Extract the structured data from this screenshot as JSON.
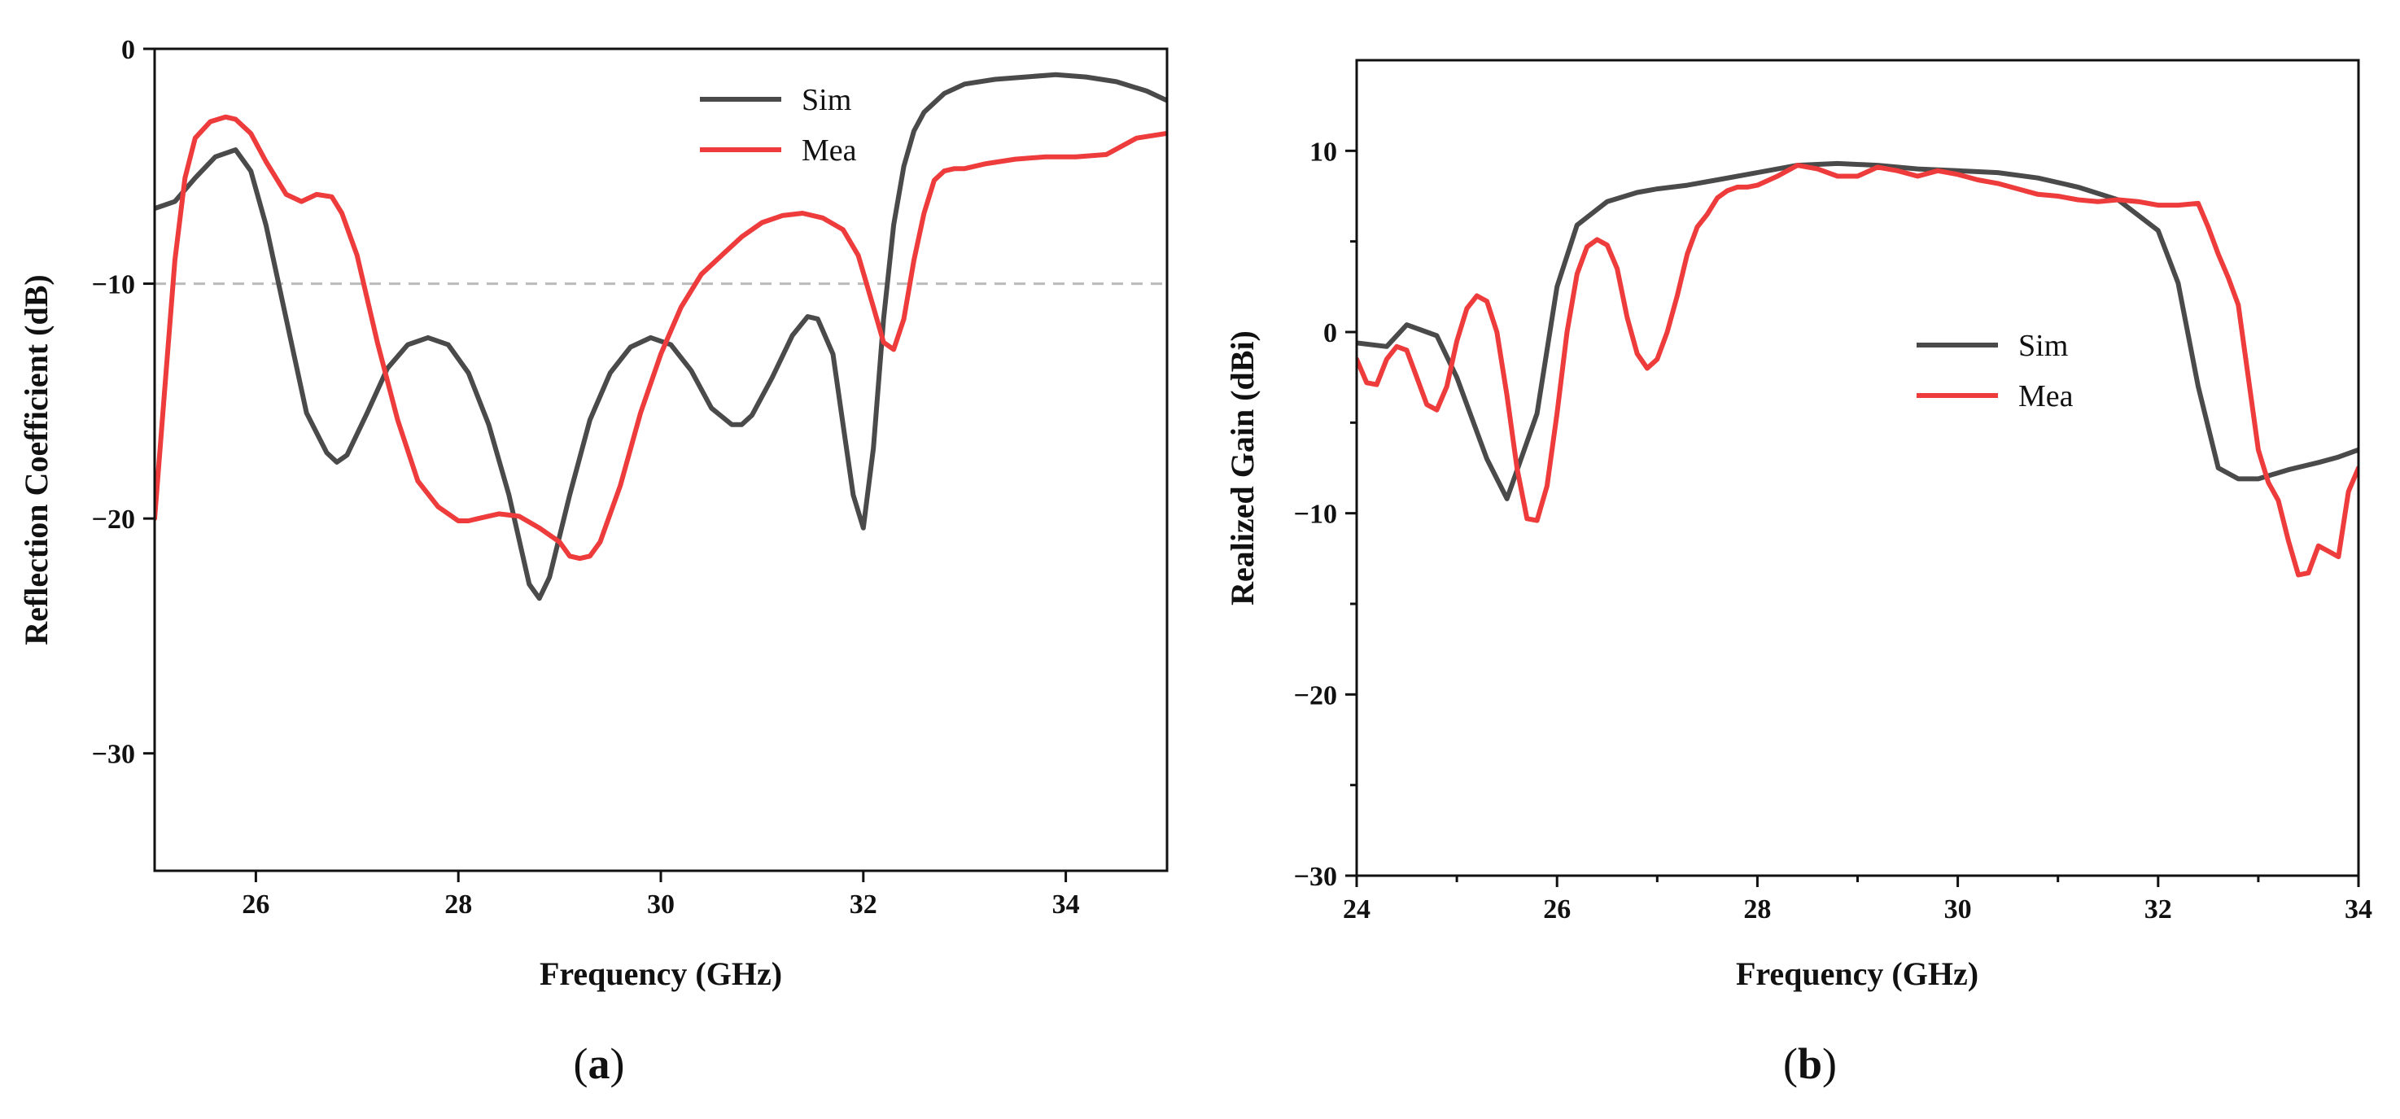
{
  "chart_data": [
    {
      "id": "a",
      "type": "line",
      "panel_label": "a",
      "xlabel": "Frequency (GHz)",
      "ylabel": "Reflection Coefficient (dB)",
      "xlim": [
        25,
        35
      ],
      "ylim": [
        -35,
        0
      ],
      "xticks": [
        26,
        28,
        30,
        32,
        34
      ],
      "yticks": [
        0,
        -10,
        -20,
        -30
      ],
      "xtick_labels": [
        "26",
        "28",
        "30",
        "32",
        "34"
      ],
      "ytick_labels": [
        "0",
        "−10",
        "−20",
        "−30"
      ],
      "reference_line": {
        "y": -10,
        "style": "dashed",
        "color": "#bbbbbb"
      },
      "legend": {
        "position": "top-right",
        "entries": [
          "Sim",
          "Mea"
        ]
      },
      "series": [
        {
          "name": "Sim",
          "color": "#4a4a4a",
          "x": [
            25.0,
            25.2,
            25.4,
            25.6,
            25.8,
            25.95,
            26.1,
            26.3,
            26.5,
            26.7,
            26.8,
            26.9,
            27.1,
            27.3,
            27.5,
            27.7,
            27.9,
            28.1,
            28.3,
            28.5,
            28.7,
            28.8,
            28.9,
            29.1,
            29.3,
            29.5,
            29.7,
            29.9,
            30.1,
            30.3,
            30.5,
            30.7,
            30.8,
            30.9,
            31.1,
            31.3,
            31.45,
            31.55,
            31.7,
            31.8,
            31.9,
            32.0,
            32.1,
            32.2,
            32.3,
            32.4,
            32.5,
            32.6,
            32.8,
            33.0,
            33.3,
            33.6,
            33.9,
            34.2,
            34.5,
            34.8,
            35.0
          ],
          "y": [
            -6.8,
            -6.5,
            -5.5,
            -4.6,
            -4.3,
            -5.2,
            -7.5,
            -11.5,
            -15.5,
            -17.2,
            -17.6,
            -17.3,
            -15.5,
            -13.6,
            -12.6,
            -12.3,
            -12.6,
            -13.8,
            -16.0,
            -19.0,
            -22.8,
            -23.4,
            -22.5,
            -19.0,
            -15.8,
            -13.8,
            -12.7,
            -12.3,
            -12.6,
            -13.7,
            -15.3,
            -16.0,
            -16.0,
            -15.6,
            -14.0,
            -12.2,
            -11.4,
            -11.5,
            -13.0,
            -16.0,
            -19.0,
            -20.4,
            -17.0,
            -11.5,
            -7.5,
            -5.0,
            -3.5,
            -2.7,
            -1.9,
            -1.5,
            -1.3,
            -1.2,
            -1.1,
            -1.2,
            -1.4,
            -1.8,
            -2.2
          ]
        },
        {
          "name": "Mea",
          "color": "#ee3b3b",
          "x": [
            25.0,
            25.1,
            25.2,
            25.3,
            25.4,
            25.55,
            25.7,
            25.8,
            25.95,
            26.1,
            26.3,
            26.45,
            26.6,
            26.75,
            26.85,
            27.0,
            27.2,
            27.4,
            27.6,
            27.8,
            28.0,
            28.1,
            28.2,
            28.4,
            28.6,
            28.8,
            29.0,
            29.1,
            29.2,
            29.3,
            29.4,
            29.6,
            29.8,
            30.0,
            30.2,
            30.4,
            30.6,
            30.8,
            31.0,
            31.2,
            31.4,
            31.6,
            31.8,
            31.95,
            32.1,
            32.2,
            32.3,
            32.4,
            32.5,
            32.6,
            32.7,
            32.8,
            32.9,
            33.0,
            33.2,
            33.5,
            33.8,
            34.1,
            34.4,
            34.7,
            35.0
          ],
          "y": [
            -20.0,
            -14.5,
            -9.0,
            -5.5,
            -3.8,
            -3.1,
            -2.9,
            -3.0,
            -3.6,
            -4.8,
            -6.2,
            -6.5,
            -6.2,
            -6.3,
            -7.0,
            -8.8,
            -12.5,
            -15.8,
            -18.4,
            -19.5,
            -20.1,
            -20.1,
            -20.0,
            -19.8,
            -19.9,
            -20.4,
            -21.0,
            -21.6,
            -21.7,
            -21.6,
            -21.0,
            -18.6,
            -15.5,
            -13.0,
            -11.0,
            -9.6,
            -8.8,
            -8.0,
            -7.4,
            -7.1,
            -7.0,
            -7.2,
            -7.7,
            -8.8,
            -11.0,
            -12.5,
            -12.8,
            -11.5,
            -9.0,
            -7.0,
            -5.6,
            -5.2,
            -5.1,
            -5.1,
            -4.9,
            -4.7,
            -4.6,
            -4.6,
            -4.5,
            -3.8,
            -3.6
          ]
        }
      ]
    },
    {
      "id": "b",
      "type": "line",
      "panel_label": "b",
      "xlabel": "Frequency (GHz)",
      "ylabel": "Realized Gain (dBi)",
      "xlim": [
        24,
        34
      ],
      "ylim": [
        -30,
        15
      ],
      "xticks": [
        24,
        26,
        28,
        30,
        32,
        34
      ],
      "yticks": [
        10,
        0,
        -10,
        -20,
        -30
      ],
      "xtick_labels": [
        "24",
        "26",
        "28",
        "30",
        "32",
        "34"
      ],
      "ytick_labels": [
        "10",
        "0",
        "−10",
        "−20",
        "−30"
      ],
      "legend": {
        "position": "center-right",
        "entries": [
          "Sim",
          "Mea"
        ]
      },
      "series": [
        {
          "name": "Sim",
          "color": "#4a4a4a",
          "x": [
            24.0,
            24.3,
            24.5,
            24.8,
            25.0,
            25.3,
            25.5,
            25.8,
            26.0,
            26.2,
            26.5,
            26.8,
            27.0,
            27.3,
            27.6,
            28.0,
            28.4,
            28.8,
            29.2,
            29.6,
            30.0,
            30.4,
            30.8,
            31.2,
            31.6,
            32.0,
            32.2,
            32.4,
            32.6,
            32.8,
            33.0,
            33.3,
            33.6,
            33.8,
            34.0
          ],
          "y": [
            -0.6,
            -0.8,
            0.4,
            -0.2,
            -2.5,
            -7.0,
            -9.2,
            -4.5,
            2.5,
            5.9,
            7.2,
            7.7,
            7.9,
            8.1,
            8.4,
            8.8,
            9.2,
            9.3,
            9.2,
            9.0,
            8.9,
            8.8,
            8.5,
            8.0,
            7.3,
            5.6,
            2.7,
            -3.0,
            -7.5,
            -8.1,
            -8.1,
            -7.6,
            -7.2,
            -6.9,
            -6.5
          ]
        },
        {
          "name": "Mea",
          "color": "#ee3b3b",
          "x": [
            24.0,
            24.1,
            24.2,
            24.3,
            24.4,
            24.5,
            24.6,
            24.7,
            24.8,
            24.9,
            25.0,
            25.1,
            25.2,
            25.3,
            25.4,
            25.5,
            25.6,
            25.7,
            25.8,
            25.9,
            26.0,
            26.1,
            26.2,
            26.3,
            26.4,
            26.5,
            26.6,
            26.7,
            26.8,
            26.9,
            27.0,
            27.1,
            27.2,
            27.3,
            27.4,
            27.5,
            27.6,
            27.7,
            27.8,
            27.9,
            28.0,
            28.2,
            28.4,
            28.6,
            28.8,
            29.0,
            29.2,
            29.4,
            29.6,
            29.8,
            30.0,
            30.2,
            30.4,
            30.6,
            30.8,
            31.0,
            31.2,
            31.4,
            31.6,
            31.8,
            32.0,
            32.2,
            32.4,
            32.5,
            32.6,
            32.7,
            32.8,
            32.9,
            33.0,
            33.1,
            33.2,
            33.3,
            33.4,
            33.5,
            33.6,
            33.7,
            33.8,
            33.9,
            34.0
          ],
          "y": [
            -1.5,
            -2.8,
            -2.9,
            -1.5,
            -0.8,
            -1.0,
            -2.5,
            -4.0,
            -4.3,
            -3.0,
            -0.5,
            1.3,
            2.0,
            1.7,
            0.0,
            -3.5,
            -7.5,
            -10.3,
            -10.4,
            -8.5,
            -4.5,
            0.0,
            3.2,
            4.7,
            5.1,
            4.8,
            3.5,
            0.8,
            -1.2,
            -2.0,
            -1.5,
            0.0,
            2.0,
            4.3,
            5.8,
            6.5,
            7.4,
            7.8,
            8.0,
            8.0,
            8.1,
            8.6,
            9.2,
            9.0,
            8.6,
            8.6,
            9.1,
            8.9,
            8.6,
            8.9,
            8.7,
            8.4,
            8.2,
            7.9,
            7.6,
            7.5,
            7.3,
            7.2,
            7.3,
            7.2,
            7.0,
            7.0,
            7.1,
            5.8,
            4.3,
            3.0,
            1.5,
            -2.5,
            -6.5,
            -8.3,
            -9.3,
            -11.5,
            -13.4,
            -13.3,
            -11.8,
            -12.1,
            -12.4,
            -8.8,
            -7.5
          ]
        }
      ]
    }
  ]
}
